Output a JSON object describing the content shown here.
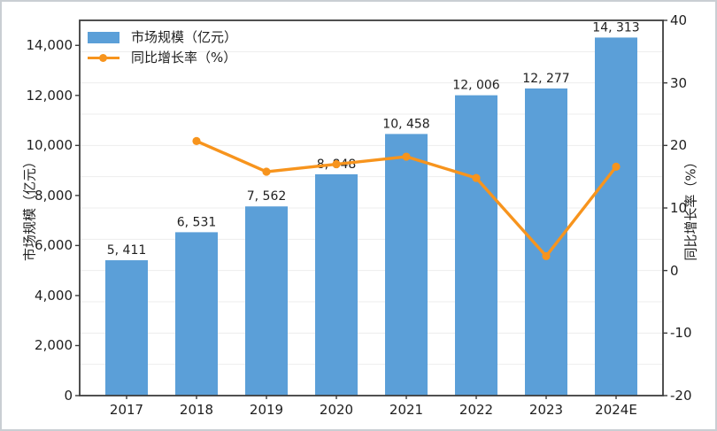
{
  "figure": {
    "background": "#ffffff",
    "border_color": "#c9ced3",
    "spine_color": "#3c3c3c",
    "gridline_color": "#ededed"
  },
  "chart_data": {
    "type": "combo",
    "categories": [
      "2017",
      "2018",
      "2019",
      "2020",
      "2021",
      "2022",
      "2023",
      "2024E"
    ],
    "series": [
      {
        "name": "市场规模（亿元）",
        "type": "bar",
        "axis": "left",
        "color": "#5B9FD8",
        "values": [
          5411,
          6531,
          7562,
          8848,
          10458,
          12006,
          12277,
          14313
        ],
        "data_labels": [
          "5, 411",
          "6, 531",
          "7, 562",
          "8, 848",
          "10, 458",
          "12, 006",
          "12, 277",
          "14, 313"
        ]
      },
      {
        "name": "同比增长率（%）",
        "type": "line",
        "axis": "right",
        "color": "#F7941D",
        "values": [
          null,
          20.7,
          15.8,
          17.0,
          18.2,
          14.8,
          2.3,
          16.6
        ]
      }
    ],
    "left_axis": {
      "title": "市场规模（亿元）",
      "min": 0,
      "max": 15000,
      "ticks": [
        0,
        2000,
        4000,
        6000,
        8000,
        10000,
        12000,
        14000
      ],
      "tick_labels": [
        "0",
        "2,000",
        "4,000",
        "6,000",
        "8,000",
        "10,000",
        "12,000",
        "14,000"
      ]
    },
    "right_axis": {
      "title": "同比增长率（%）",
      "min": -20,
      "max": 40,
      "ticks": [
        40,
        30,
        20,
        10,
        0,
        -10,
        -20
      ],
      "tick_labels": [
        "40",
        "30",
        "20",
        "10",
        "0",
        "-10",
        "-20"
      ],
      "grid_step": 5
    },
    "legend_position": "top-left",
    "grid": "faint horizontal lines"
  }
}
